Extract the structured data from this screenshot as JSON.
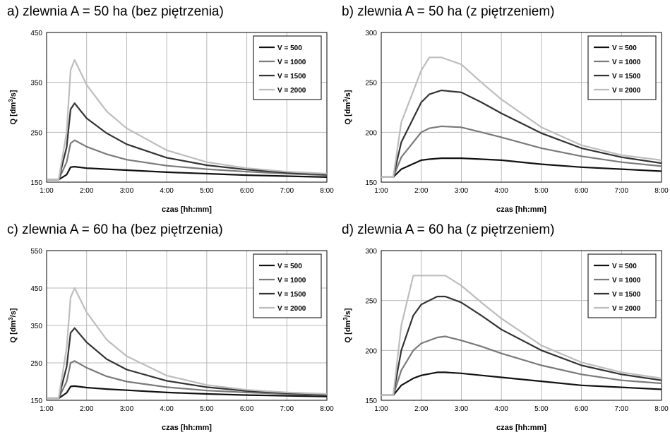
{
  "colors": {
    "V = 500": "#111111",
    "V = 1000": "#7a7a7a",
    "V = 1500": "#333333",
    "V = 2000": "#bdbdbd",
    "grid": "#b8b8b8",
    "axis": "#000000"
  },
  "chart_data": [
    {
      "type": "line",
      "title": "a) zlewnia A = 50 ha (bez piętrzenia)",
      "xlabel": "czas [hh:mm]",
      "ylabel": "Q [dm3/s]",
      "xticks": [
        "1:00",
        "2:00",
        "3:00",
        "4:00",
        "5:00",
        "6:00",
        "7:00",
        "8:00"
      ],
      "yticks": [
        150,
        250,
        350,
        450
      ],
      "ylim": [
        150,
        450
      ],
      "grid": true,
      "legend_position": "top-right",
      "x": [
        "1:00",
        "1:18",
        "1:30",
        "1:36",
        "1:42",
        "2:00",
        "2:30",
        "3:00",
        "4:00",
        "5:00",
        "6:00",
        "7:00",
        "8:00"
      ],
      "series": [
        {
          "name": "V = 500",
          "values": [
            155,
            155,
            165,
            180,
            181,
            178,
            176,
            174,
            170,
            167,
            164,
            162,
            160
          ]
        },
        {
          "name": "V = 1000",
          "values": [
            155,
            155,
            190,
            228,
            234,
            221,
            206,
            195,
            183,
            176,
            171,
            167,
            164
          ]
        },
        {
          "name": "V = 1500",
          "values": [
            155,
            155,
            220,
            296,
            308,
            278,
            248,
            226,
            199,
            184,
            175,
            169,
            165
          ]
        },
        {
          "name": "V = 2000",
          "values": [
            155,
            155,
            250,
            375,
            395,
            345,
            292,
            258,
            214,
            190,
            178,
            171,
            167
          ]
        }
      ]
    },
    {
      "type": "line",
      "title": "b) zlewnia A = 50 ha (z piętrzeniem)",
      "xlabel": "czas [hh:mm]",
      "ylabel": "Q [dm3/s]",
      "xticks": [
        "1:00",
        "2:00",
        "3:00",
        "4:00",
        "5:00",
        "6:00",
        "7:00",
        "8:00"
      ],
      "yticks": [
        150,
        200,
        250,
        300
      ],
      "ylim": [
        150,
        300
      ],
      "grid": true,
      "legend_position": "top-right",
      "x": [
        "1:00",
        "1:18",
        "1:30",
        "2:00",
        "2:12",
        "2:30",
        "3:00",
        "3:30",
        "4:00",
        "5:00",
        "6:00",
        "7:00",
        "8:00"
      ],
      "series": [
        {
          "name": "V = 500",
          "values": [
            155,
            155,
            163,
            172,
            173,
            174,
            174,
            173,
            172,
            168,
            165,
            163,
            161
          ]
        },
        {
          "name": "V = 1000",
          "values": [
            155,
            155,
            175,
            200,
            204,
            206,
            205,
            200,
            195,
            184,
            176,
            170,
            166
          ]
        },
        {
          "name": "V = 1500",
          "values": [
            155,
            155,
            190,
            230,
            238,
            242,
            240,
            230,
            219,
            199,
            184,
            175,
            169
          ]
        },
        {
          "name": "V = 2000",
          "values": [
            155,
            155,
            210,
            262,
            275,
            275,
            268,
            250,
            233,
            205,
            187,
            177,
            172
          ]
        }
      ]
    },
    {
      "type": "line",
      "title": "c) zlewnia A = 60 ha (bez piętrzenia)",
      "xlabel": "czas [hh:mm]",
      "ylabel": "Q [dm3/s]",
      "xticks": [
        "1:00",
        "2:00",
        "3:00",
        "4:00",
        "5:00",
        "6:00",
        "7:00",
        "8:00"
      ],
      "yticks": [
        150,
        250,
        350,
        450,
        550
      ],
      "ylim": [
        150,
        550
      ],
      "grid": true,
      "legend_position": "top-right",
      "x": [
        "1:00",
        "1:18",
        "1:30",
        "1:36",
        "1:42",
        "2:00",
        "2:30",
        "3:00",
        "4:00",
        "5:00",
        "6:00",
        "7:00",
        "8:00"
      ],
      "series": [
        {
          "name": "V = 500",
          "values": [
            155,
            155,
            170,
            187,
            188,
            184,
            180,
            177,
            171,
            167,
            164,
            162,
            160
          ]
        },
        {
          "name": "V = 1000",
          "values": [
            155,
            155,
            200,
            250,
            255,
            237,
            214,
            200,
            185,
            176,
            171,
            167,
            164
          ]
        },
        {
          "name": "V = 1500",
          "values": [
            155,
            155,
            240,
            330,
            343,
            305,
            260,
            232,
            202,
            185,
            175,
            169,
            165
          ]
        },
        {
          "name": "V = 2000",
          "values": [
            155,
            155,
            290,
            425,
            450,
            385,
            312,
            268,
            216,
            191,
            178,
            171,
            167
          ]
        }
      ]
    },
    {
      "type": "line",
      "title": "d) zlewnia A = 60 ha (z piętrzeniem)",
      "xlabel": "czas [hh:mm]",
      "ylabel": "Q [dm3/s]",
      "xticks": [
        "1:00",
        "2:00",
        "3:00",
        "4:00",
        "5:00",
        "6:00",
        "7:00",
        "8:00"
      ],
      "yticks": [
        150,
        200,
        250,
        300
      ],
      "ylim": [
        150,
        300
      ],
      "grid": true,
      "legend_position": "top-right",
      "x": [
        "1:00",
        "1:18",
        "1:30",
        "1:48",
        "2:00",
        "2:24",
        "2:36",
        "3:00",
        "3:30",
        "4:00",
        "5:00",
        "6:00",
        "7:00",
        "8:00"
      ],
      "series": [
        {
          "name": "V = 500",
          "values": [
            155,
            155,
            165,
            172,
            175,
            178,
            178,
            177,
            175,
            173,
            169,
            165,
            163,
            161
          ]
        },
        {
          "name": "V = 1000",
          "values": [
            155,
            155,
            180,
            200,
            207,
            213,
            214,
            210,
            204,
            197,
            185,
            176,
            170,
            167
          ]
        },
        {
          "name": "V = 1500",
          "values": [
            155,
            155,
            200,
            235,
            246,
            254,
            254,
            248,
            235,
            221,
            200,
            185,
            176,
            170
          ]
        },
        {
          "name": "V = 2000",
          "values": [
            155,
            155,
            225,
            275,
            275,
            275,
            275,
            265,
            248,
            232,
            205,
            188,
            178,
            172
          ]
        }
      ]
    }
  ]
}
